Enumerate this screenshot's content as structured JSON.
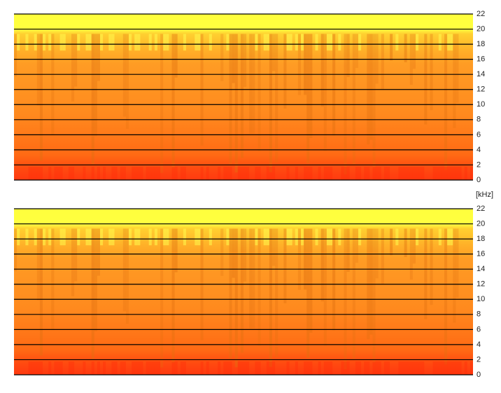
{
  "chart_data": [
    {
      "type": "spectrogram",
      "ylim": [
        0,
        22
      ],
      "yticks": [
        0,
        2,
        4,
        6,
        8,
        10,
        12,
        14,
        16,
        18,
        20,
        22
      ]
    },
    {
      "type": "spectrogram",
      "y_label": "[kHz]",
      "ylim": [
        0,
        22
      ],
      "yticks": [
        0,
        2,
        4,
        6,
        8,
        10,
        12,
        14,
        16,
        18,
        20,
        22
      ]
    }
  ]
}
